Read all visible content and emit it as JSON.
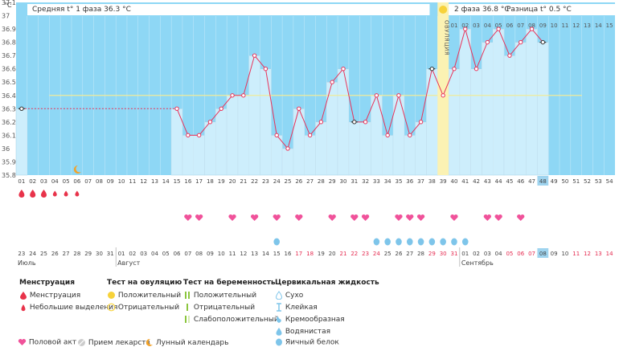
{
  "chart_data": {
    "type": "line",
    "y_unit": "°C",
    "ylim": [
      35.8,
      37.1
    ],
    "yticks": [
      "37.1",
      "37",
      "36.9",
      "36.8",
      "36.7",
      "36.6",
      "36.5",
      "36.4",
      "36.3",
      "36.2",
      "36.1",
      "36",
      "35.9",
      "35.8"
    ],
    "cycle_days": [
      "01",
      "02",
      "03",
      "04",
      "05",
      "06",
      "07",
      "08",
      "09",
      "10",
      "11",
      "12",
      "13",
      "14",
      "15",
      "16",
      "17",
      "18",
      "19",
      "20",
      "21",
      "22",
      "23",
      "24",
      "25",
      "26",
      "27",
      "28",
      "29",
      "30",
      "31",
      "32",
      "33",
      "34",
      "35",
      "36",
      "37",
      "38",
      "39",
      "40",
      "41",
      "42",
      "43",
      "44",
      "45",
      "46",
      "47",
      "48",
      "49",
      "50",
      "51",
      "52",
      "53",
      "54"
    ],
    "dates": [
      "23",
      "24",
      "25",
      "26",
      "27",
      "28",
      "29",
      "30",
      "31",
      "01",
      "02",
      "03",
      "04",
      "05",
      "06",
      "07",
      "08",
      "09",
      "10",
      "11",
      "12",
      "13",
      "14",
      "15",
      "16",
      "17",
      "18",
      "19",
      "20",
      "21",
      "22",
      "23",
      "24",
      "25",
      "26",
      "27",
      "28",
      "29",
      "30",
      "31",
      "01",
      "02",
      "03",
      "04",
      "05",
      "06",
      "07",
      "08",
      "09",
      "10",
      "11",
      "12",
      "13",
      "14"
    ],
    "date_red": [
      26,
      27,
      30,
      31,
      32,
      33,
      38,
      39,
      40,
      45,
      46,
      47,
      51,
      52,
      53,
      54
    ],
    "months": [
      {
        "label": "Июль",
        "day": 1
      },
      {
        "label": "Август",
        "day": 10
      },
      {
        "label": "Сентябрь",
        "day": 41
      }
    ],
    "today_day": 48,
    "temps": [
      {
        "day": 1,
        "t": 36.3
      },
      {
        "day": 15,
        "t": 36.3
      },
      {
        "day": 16,
        "t": 36.1
      },
      {
        "day": 17,
        "t": 36.1
      },
      {
        "day": 18,
        "t": 36.2
      },
      {
        "day": 19,
        "t": 36.3
      },
      {
        "day": 20,
        "t": 36.4
      },
      {
        "day": 21,
        "t": 36.4
      },
      {
        "day": 22,
        "t": 36.7
      },
      {
        "day": 23,
        "t": 36.6
      },
      {
        "day": 24,
        "t": 36.1
      },
      {
        "day": 25,
        "t": 36.0
      },
      {
        "day": 26,
        "t": 36.3
      },
      {
        "day": 27,
        "t": 36.1
      },
      {
        "day": 28,
        "t": 36.2
      },
      {
        "day": 29,
        "t": 36.5
      },
      {
        "day": 30,
        "t": 36.6
      },
      {
        "day": 31,
        "t": 36.2
      },
      {
        "day": 32,
        "t": 36.2
      },
      {
        "day": 33,
        "t": 36.4
      },
      {
        "day": 34,
        "t": 36.1
      },
      {
        "day": 35,
        "t": 36.4
      },
      {
        "day": 36,
        "t": 36.1
      },
      {
        "day": 37,
        "t": 36.2
      },
      {
        "day": 38,
        "t": 36.6
      },
      {
        "day": 39,
        "t": 36.4
      },
      {
        "day": 40,
        "t": 36.6
      },
      {
        "day": 41,
        "t": 36.9
      },
      {
        "day": 42,
        "t": 36.6
      },
      {
        "day": 43,
        "t": 36.8
      },
      {
        "day": 44,
        "t": 36.9
      },
      {
        "day": 45,
        "t": 36.7
      },
      {
        "day": 46,
        "t": 36.8
      },
      {
        "day": 47,
        "t": 36.9
      },
      {
        "day": 48,
        "t": 36.8
      }
    ],
    "coverline": 36.4,
    "ovulation_day": 39,
    "ovulation_label": "ОВУЛЯЦИЯ",
    "phase1_label": "Средняя t° 1 фаза 36.3 °C",
    "phase2_label": "2 фаза 36.8 °C",
    "diff_label": "Разница t° 0.5 °C",
    "phase2_day_labels": [
      "01",
      "02",
      "03",
      "04",
      "05",
      "06",
      "07",
      "08",
      "09",
      "10",
      "11",
      "12",
      "13",
      "14",
      "15"
    ],
    "menstruation": [
      {
        "day": 1,
        "kind": "heavy"
      },
      {
        "day": 2,
        "kind": "heavy"
      },
      {
        "day": 3,
        "kind": "heavy"
      },
      {
        "day": 4,
        "kind": "light"
      },
      {
        "day": 5,
        "kind": "light"
      },
      {
        "day": 6,
        "kind": "light"
      }
    ],
    "sex_days": [
      16,
      17,
      20,
      22,
      24,
      26,
      29,
      31,
      32,
      35,
      36,
      37,
      40,
      43,
      44,
      46
    ],
    "cervical_egg_white_days": [
      24,
      33,
      34,
      35,
      36,
      37,
      38,
      39,
      40,
      41
    ],
    "moon_day": 6
  },
  "legend": {
    "menstruation_title": "Менструация",
    "menstruation_heavy": "Менструация",
    "menstruation_light": "Небольшие выделения",
    "ovulation_test_title": "Тест на овуляцию",
    "ovulation_positive": "Положительный",
    "ovulation_negative": "Отрицательный",
    "pregnancy_test_title": "Тест на беременность",
    "pregnancy_positive": "Положительный",
    "pregnancy_negative": "Отрицательный",
    "pregnancy_weak": "Слабоположительный",
    "cervical_title": "Цервикальная жидкость",
    "cervical_dry": "Сухо",
    "cervical_sticky": "Клейкая",
    "cervical_creamy": "Кремообразная",
    "cervical_watery": "Водянистая",
    "cervical_eggwhite": "Яичный белок",
    "sex": "Половой акт",
    "medicine": "Прием лекарств",
    "lunar": "Лунный календарь"
  },
  "colors": {
    "bg_phase": "#8ed7f5",
    "bar": "#cdeefc",
    "bar_stroke": "#9fcfe6",
    "line": "#e8335a",
    "coverline": "#f0eb9a",
    "ovulation": "#fbf2b3",
    "heart": "#f0529a",
    "drop": "#e8334a",
    "cervical": "#7ec5ea",
    "today": "#9fd4ef"
  }
}
